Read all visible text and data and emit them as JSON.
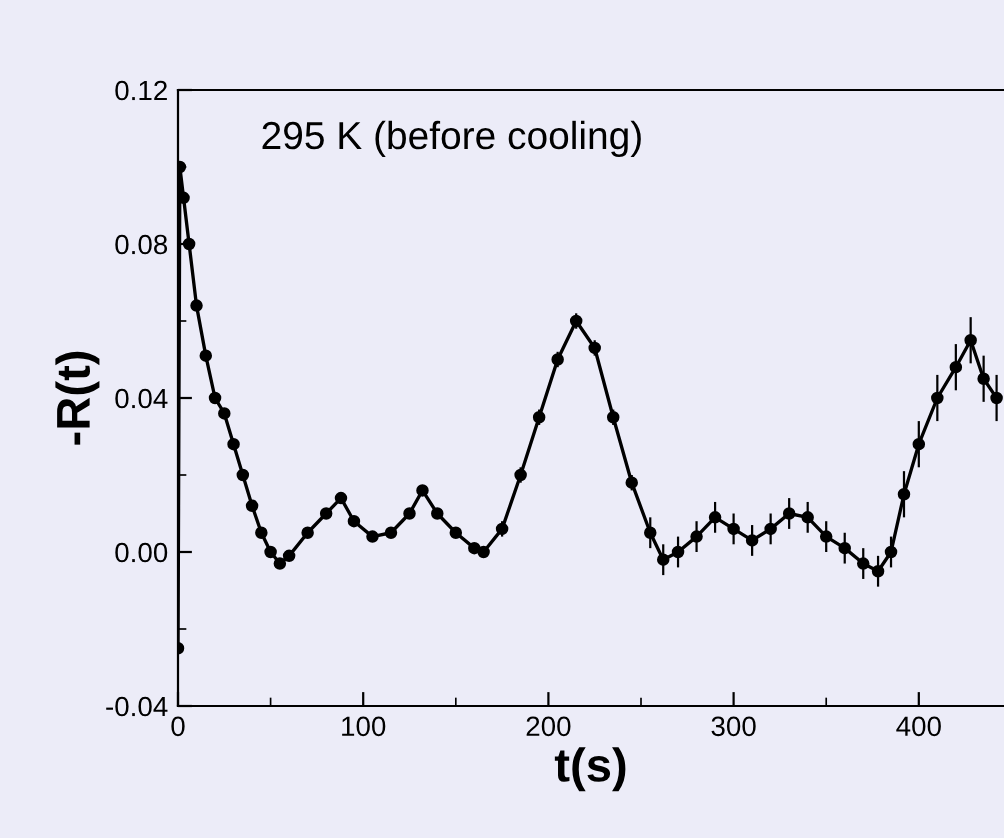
{
  "chart_data": {
    "type": "line",
    "xlabel": "t(s)",
    "ylabel": "-R(t)",
    "annotations": [
      "295 K (before cooling)"
    ],
    "x": [
      0,
      1,
      3,
      6,
      10,
      15,
      20,
      25,
      30,
      35,
      40,
      45,
      50,
      55,
      60,
      70,
      80,
      88,
      95,
      105,
      115,
      125,
      132,
      140,
      150,
      160,
      165,
      175,
      185,
      195,
      205,
      215,
      225,
      235,
      245,
      255,
      262,
      270,
      280,
      290,
      300,
      310,
      320,
      330,
      340,
      350,
      360,
      370,
      378,
      385,
      392,
      400,
      410,
      420,
      428,
      435,
      442
    ],
    "series": [
      {
        "color": "#000000",
        "marker": "circle",
        "values": [
          -0.025,
          0.1,
          0.092,
          0.08,
          0.064,
          0.051,
          0.04,
          0.036,
          0.028,
          0.02,
          0.012,
          0.005,
          0.0,
          -0.003,
          -0.001,
          0.005,
          0.01,
          0.014,
          0.008,
          0.004,
          0.005,
          0.01,
          0.016,
          0.01,
          0.005,
          0.001,
          0.0,
          0.006,
          0.02,
          0.035,
          0.05,
          0.06,
          0.053,
          0.035,
          0.018,
          0.005,
          -0.002,
          0.0,
          0.004,
          0.009,
          0.006,
          0.003,
          0.006,
          0.01,
          0.009,
          0.004,
          0.001,
          -0.003,
          -0.005,
          0.0,
          0.015,
          0.028,
          0.04,
          0.048,
          0.055,
          0.045,
          0.04
        ],
        "errors": [
          0.001,
          0.001,
          0.001,
          0.001,
          0.001,
          0.001,
          0.001,
          0.001,
          0.001,
          0.001,
          0.001,
          0.001,
          0.001,
          0.001,
          0.001,
          0.001,
          0.001,
          0.001,
          0.001,
          0.001,
          0.001,
          0.001,
          0.001,
          0.001,
          0.001,
          0.001,
          0.001,
          0.002,
          0.002,
          0.002,
          0.002,
          0.002,
          0.002,
          0.002,
          0.002,
          0.004,
          0.004,
          0.004,
          0.004,
          0.004,
          0.004,
          0.004,
          0.004,
          0.004,
          0.004,
          0.004,
          0.004,
          0.004,
          0.004,
          0.004,
          0.006,
          0.006,
          0.006,
          0.006,
          0.006,
          0.006,
          0.006
        ]
      }
    ],
    "xlim": [
      0,
      446
    ],
    "xticks": [
      0,
      100,
      200,
      300,
      400
    ],
    "ylim": [
      -0.04,
      0.12
    ],
    "yticks": [
      {
        "value": -0.04,
        "label": "-0.04"
      },
      {
        "value": 0.0,
        "label": "0.00"
      },
      {
        "value": 0.04,
        "label": "0.04"
      },
      {
        "value": 0.08,
        "label": "0.08"
      },
      {
        "value": 0.12,
        "label": "0.12"
      }
    ],
    "grid": false,
    "legend": false
  }
}
